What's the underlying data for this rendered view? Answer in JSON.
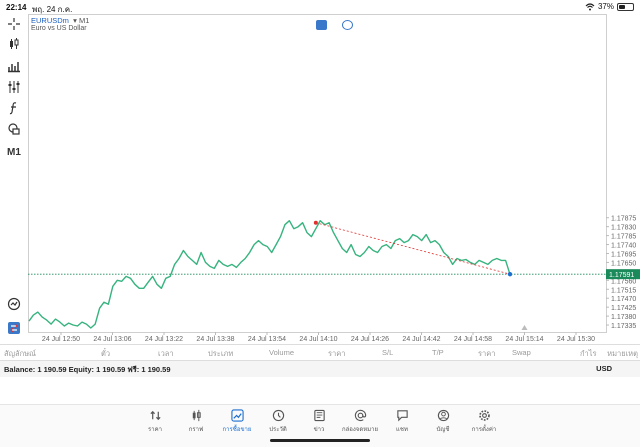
{
  "status": {
    "time": "22:14",
    "date": "พฤ. 24 ก.ค.",
    "battery": "37%",
    "battery_level": 0.37
  },
  "chart": {
    "symbol": "EURUSDm",
    "timeframe": "M1",
    "description": "Euro vs US Dollar",
    "current_price_label": "1.17591",
    "tool_label": "M1",
    "icons": [
      "crosshair-icon",
      "candles-icon",
      "bars-icon",
      "indicators-icon",
      "function-icon",
      "objects-icon",
      "clock-icon",
      "trade-icon"
    ]
  },
  "chart_data": {
    "type": "line",
    "ylim": [
      1.173,
      1.189
    ],
    "y_ticks": [
      "1.17875",
      "1.17830",
      "1.17785",
      "1.17740",
      "1.17695",
      "1.17650",
      "1.17605",
      "1.17560",
      "1.17515",
      "1.17470",
      "1.17425",
      "1.17380",
      "1.17335"
    ],
    "x_ticks": [
      "24 Jul 12:50",
      "24 Jul 13:06",
      "24 Jul 13:22",
      "24 Jul 13:38",
      "24 Jul 13:54",
      "24 Jul 14:10",
      "24 Jul 14:26",
      "24 Jul 14:42",
      "24 Jul 14:58",
      "24 Jul 15:14",
      "24 Jul 15:30"
    ],
    "current_price": 1.17591,
    "series": [
      {
        "values": [
          1.17355,
          1.17385,
          1.174,
          1.17375,
          1.1736,
          1.1734,
          1.17365,
          1.1735,
          1.1733,
          1.17345,
          1.17335,
          1.1733,
          1.1735,
          1.1734,
          1.1732,
          1.1734,
          1.1742,
          1.1745,
          1.1744,
          1.1753,
          1.1756,
          1.17555,
          1.1758,
          1.1757,
          1.1754,
          1.1752,
          1.1752,
          1.1755,
          1.1758,
          1.1754,
          1.1752,
          1.1757,
          1.1758,
          1.1764,
          1.1767,
          1.1771,
          1.1768,
          1.1766,
          1.1764,
          1.177,
          1.1765,
          1.1763,
          1.1762,
          1.1766,
          1.1764,
          1.1763,
          1.1764,
          1.17625,
          1.1765,
          1.1767,
          1.177,
          1.1774,
          1.1776,
          1.1774,
          1.1773,
          1.177,
          1.1774,
          1.1778,
          1.1784,
          1.1786,
          1.1782,
          1.1783,
          1.1785,
          1.178,
          1.1778,
          1.1782,
          1.1786,
          1.1784,
          1.1785,
          1.178,
          1.1776,
          1.1772,
          1.177,
          1.1774,
          1.1769,
          1.1768,
          1.177,
          1.1773,
          1.1771,
          1.177,
          1.1773,
          1.1774,
          1.1772,
          1.1776,
          1.1777,
          1.1775,
          1.1776,
          1.1779,
          1.1778,
          1.1776,
          1.1779,
          1.1775,
          1.1776,
          1.1774,
          1.177,
          1.1768,
          1.1764,
          1.1767,
          1.1766,
          1.17665,
          1.1765,
          1.1764,
          1.1766,
          1.1765,
          1.1764,
          1.1766,
          1.1767,
          1.1766,
          1.1766,
          1.1759
        ]
      }
    ],
    "trade_line": {
      "from_value": 1.1785,
      "to_value": 1.17591
    }
  },
  "columns": [
    "สัญลักษณ์",
    "ตั๋ว",
    "เวลา",
    "ประเภท",
    "Volume",
    "ราคา",
    "S/L",
    "T/P",
    "ราคา",
    "Swap",
    "กำไร",
    "หมายเหตุ"
  ],
  "balance": {
    "text": "Balance: 1 190.59  Equity: 1 190.59  ฟรี: 1 190.59",
    "currency": "USD"
  },
  "tabs": [
    {
      "label": "ราคา",
      "icon": "sort-arrows-icon"
    },
    {
      "label": "กราฟ",
      "icon": "candles-icon"
    },
    {
      "label": "การซื้อขาย",
      "icon": "trade-chart-icon",
      "active": true
    },
    {
      "label": "ประวัติ",
      "icon": "history-icon"
    },
    {
      "label": "ข่าว",
      "icon": "news-icon"
    },
    {
      "label": "กล่องจดหมาย",
      "icon": "mailbox-icon"
    },
    {
      "label": "แชท",
      "icon": "chat-icon"
    },
    {
      "label": "บัญชี",
      "icon": "account-icon"
    },
    {
      "label": "การตั้งค่า",
      "icon": "settings-icon"
    }
  ],
  "colors": {
    "line": "#36b37e",
    "accent": "#1b6fd1",
    "trade": "#e0302f",
    "current": "#1b8a5a"
  }
}
